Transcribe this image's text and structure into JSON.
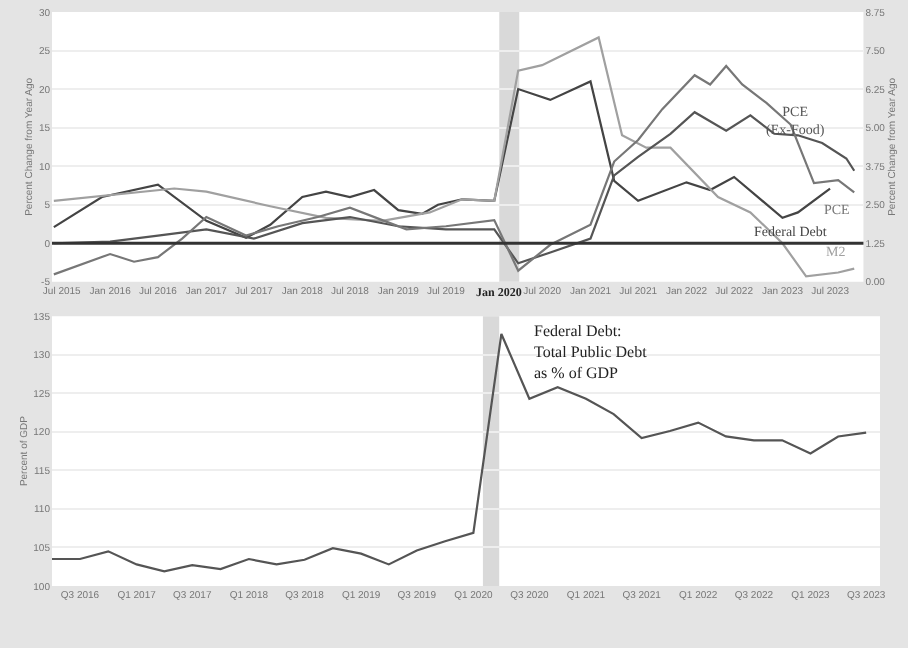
{
  "chart_data": [
    {
      "type": "line",
      "ylabel": "Percent Change from Year Ago",
      "y2label": "Percent Change from Year Ago",
      "xlim": [
        "2015-05-25",
        "2023-11-05"
      ],
      "xticks": [
        {
          "value": "2015-07-01",
          "label": "Jul 2015"
        },
        {
          "value": "2016-01-01",
          "label": "Jan 2016"
        },
        {
          "value": "2016-07-01",
          "label": "Jul 2016"
        },
        {
          "value": "2017-01-01",
          "label": "Jan 2017"
        },
        {
          "value": "2017-07-01",
          "label": "Jul 2017"
        },
        {
          "value": "2018-01-01",
          "label": "Jan 2018"
        },
        {
          "value": "2018-07-01",
          "label": "Jul 2018"
        },
        {
          "value": "2019-01-01",
          "label": "Jan 2019"
        },
        {
          "value": "2019-07-01",
          "label": "Jul 2019"
        },
        {
          "value": "2020-07-01",
          "label": "Jul 2020"
        },
        {
          "value": "2021-01-01",
          "label": "Jan 2021"
        },
        {
          "value": "2021-07-01",
          "label": "Jul 2021"
        },
        {
          "value": "2022-01-01",
          "label": "Jan 2022"
        },
        {
          "value": "2022-07-01",
          "label": "Jul 2022"
        },
        {
          "value": "2023-01-01",
          "label": "Jan 2023"
        },
        {
          "value": "2023-07-01",
          "label": "Jul 2023"
        }
      ],
      "ylim": [
        -5,
        30
      ],
      "yticks": [
        -5,
        0,
        5,
        10,
        15,
        20,
        25,
        30
      ],
      "y2lim": [
        0,
        8.75
      ],
      "y2ticks": [
        {
          "value": 0,
          "label": "0.00"
        },
        {
          "value": 1.25,
          "label": "1.25"
        },
        {
          "value": 2.5,
          "label": "2.50"
        },
        {
          "value": 3.75,
          "label": "3.75"
        },
        {
          "value": 5,
          "label": "5.00"
        },
        {
          "value": 6.25,
          "label": "6.25"
        },
        {
          "value": 7.5,
          "label": "7.50"
        },
        {
          "value": 8.75,
          "label": "8.75"
        }
      ],
      "grid": "y",
      "legend": false,
      "line_style": "solid",
      "marker": "none",
      "bands": [
        {
          "axis": "x",
          "from": "2020-01-20",
          "to": "2020-04-05",
          "label": "Jan 2020",
          "color": "#d9d9d9"
        }
      ],
      "ref_lines": [
        {
          "axis": "y",
          "value": 0,
          "color": "#333333"
        }
      ],
      "series": [
        {
          "name": "PCE\n(Ex-Food)",
          "color": "#555555",
          "axis": "y2",
          "x": [
            "2015-06",
            "2016-01",
            "2016-07",
            "2017-01",
            "2017-07",
            "2018-01",
            "2018-07",
            "2019-01",
            "2019-07",
            "2020-01",
            "2020-04",
            "2020-08",
            "2021-01",
            "2021-04",
            "2021-07",
            "2021-11",
            "2022-02",
            "2022-06",
            "2022-09",
            "2022-12",
            "2023-03",
            "2023-06",
            "2023-09",
            "2023-10"
          ],
          "values": [
            1.25,
            1.3,
            1.5,
            1.7,
            1.4,
            1.9,
            2.1,
            1.8,
            1.7,
            1.7,
            0.6,
            0.95,
            1.4,
            3.45,
            4.05,
            4.8,
            5.5,
            4.9,
            5.4,
            4.8,
            4.75,
            4.5,
            4.0,
            3.6
          ]
        },
        {
          "name": "PCE",
          "color": "#777777",
          "axis": "y2",
          "x": [
            "2015-06",
            "2016-01",
            "2016-04",
            "2016-07",
            "2016-10",
            "2017-01",
            "2017-06",
            "2017-10",
            "2018-03",
            "2018-07",
            "2018-11",
            "2019-02",
            "2019-07",
            "2020-01",
            "2020-04",
            "2020-08",
            "2021-01",
            "2021-04",
            "2021-07",
            "2021-10",
            "2022-02",
            "2022-04",
            "2022-06",
            "2022-08",
            "2022-11",
            "2023-02",
            "2023-05",
            "2023-08",
            "2023-10"
          ],
          "values": [
            0.24,
            0.9,
            0.65,
            0.8,
            1.4,
            2.1,
            1.5,
            1.8,
            2.1,
            2.4,
            2.0,
            1.7,
            1.8,
            2.0,
            0.36,
            1.2,
            1.85,
            3.9,
            4.6,
            5.6,
            6.7,
            6.4,
            7.0,
            6.4,
            5.8,
            5.1,
            3.2,
            3.3,
            2.9
          ]
        },
        {
          "name": "Federal Debt",
          "color": "#444444",
          "x": [
            "2015-06",
            "2015-12",
            "2016-07",
            "2017-01",
            "2017-06",
            "2017-09",
            "2018-01",
            "2018-04",
            "2018-07",
            "2018-10",
            "2019-01",
            "2019-04",
            "2019-06",
            "2019-09",
            "2020-01",
            "2020-04",
            "2020-08",
            "2021-01",
            "2021-04",
            "2021-07",
            "2022-01",
            "2022-04",
            "2022-07",
            "2023-01",
            "2023-03",
            "2023-07"
          ],
          "values": [
            2.1,
            6.0,
            7.6,
            2.9,
            0.7,
            2.4,
            6.0,
            6.7,
            6.0,
            6.9,
            4.3,
            3.8,
            5.0,
            5.7,
            5.5,
            20.0,
            18.6,
            21.0,
            8.1,
            5.5,
            7.9,
            6.9,
            8.6,
            3.3,
            4.0,
            7.1
          ]
        },
        {
          "name": "M2",
          "color": "#a0a0a0",
          "x": [
            "2015-06",
            "2016-09",
            "2017-01",
            "2017-09",
            "2018-04",
            "2018-11",
            "2019-05",
            "2019-09",
            "2020-01",
            "2020-04",
            "2020-07",
            "2021-02",
            "2021-05",
            "2021-08",
            "2021-11",
            "2022-05",
            "2022-09",
            "2023-01",
            "2023-04",
            "2023-08",
            "2023-10"
          ],
          "values": [
            5.5,
            7.1,
            6.7,
            4.8,
            3.3,
            2.9,
            4.0,
            5.7,
            5.5,
            22.4,
            23.1,
            26.7,
            14.0,
            12.4,
            12.4,
            6.0,
            4.0,
            0.0,
            -4.3,
            -3.8,
            -3.3
          ]
        }
      ]
    },
    {
      "type": "line",
      "ylabel": "Percent of GDP",
      "xlim": [
        "2016-04-01",
        "2023-08-15"
      ],
      "xticks": [
        {
          "value": "2016-07-01",
          "label": "Q3 2016"
        },
        {
          "value": "2017-01-01",
          "label": "Q1 2017"
        },
        {
          "value": "2017-07-01",
          "label": "Q3 2017"
        },
        {
          "value": "2018-01-01",
          "label": "Q1 2018"
        },
        {
          "value": "2018-07-01",
          "label": "Q3 2018"
        },
        {
          "value": "2019-01-01",
          "label": "Q1 2019"
        },
        {
          "value": "2019-07-01",
          "label": "Q3 2019"
        },
        {
          "value": "2020-01-01",
          "label": "Q1 2020"
        },
        {
          "value": "2020-07-01",
          "label": "Q3 2020"
        },
        {
          "value": "2021-01-01",
          "label": "Q1 2021"
        },
        {
          "value": "2021-07-01",
          "label": "Q3 2021"
        },
        {
          "value": "2022-01-01",
          "label": "Q1 2022"
        },
        {
          "value": "2022-07-01",
          "label": "Q3 2022"
        },
        {
          "value": "2023-01-01",
          "label": "Q1 2023"
        },
        {
          "value": "2023-07-01",
          "label": "Q3 2023"
        }
      ],
      "ylim": [
        100,
        135
      ],
      "yticks": [
        100,
        105,
        110,
        115,
        120,
        125,
        130,
        135
      ],
      "grid": "y",
      "legend": false,
      "line_style": "solid",
      "marker": "none",
      "bands": [
        {
          "axis": "x",
          "from": "2020-02-01",
          "to": "2020-03-25",
          "color": "#d9d9d9"
        }
      ],
      "series": [
        {
          "name": "Federal Debt:\nTotal Public Debt\nas % of GDP",
          "color": "#555555",
          "x": [
            "2016-04",
            "2016-07",
            "2016-10",
            "2017-01",
            "2017-04",
            "2017-07",
            "2017-10",
            "2018-01",
            "2018-04",
            "2018-07",
            "2018-10",
            "2019-01",
            "2019-04",
            "2019-07",
            "2019-10",
            "2020-01",
            "2020-04",
            "2020-07",
            "2020-10",
            "2021-01",
            "2021-04",
            "2021-07",
            "2021-10",
            "2022-01",
            "2022-04",
            "2022-07",
            "2022-10",
            "2023-01",
            "2023-04",
            "2023-07"
          ],
          "values": [
            103.5,
            103.5,
            104.5,
            102.8,
            101.9,
            102.7,
            102.2,
            103.5,
            102.8,
            103.4,
            104.9,
            104.2,
            102.8,
            104.6,
            105.8,
            106.9,
            132.7,
            124.3,
            125.8,
            124.3,
            122.3,
            119.2,
            120.1,
            121.2,
            119.4,
            118.9,
            118.9,
            117.2,
            119.4,
            119.9
          ]
        }
      ]
    }
  ]
}
